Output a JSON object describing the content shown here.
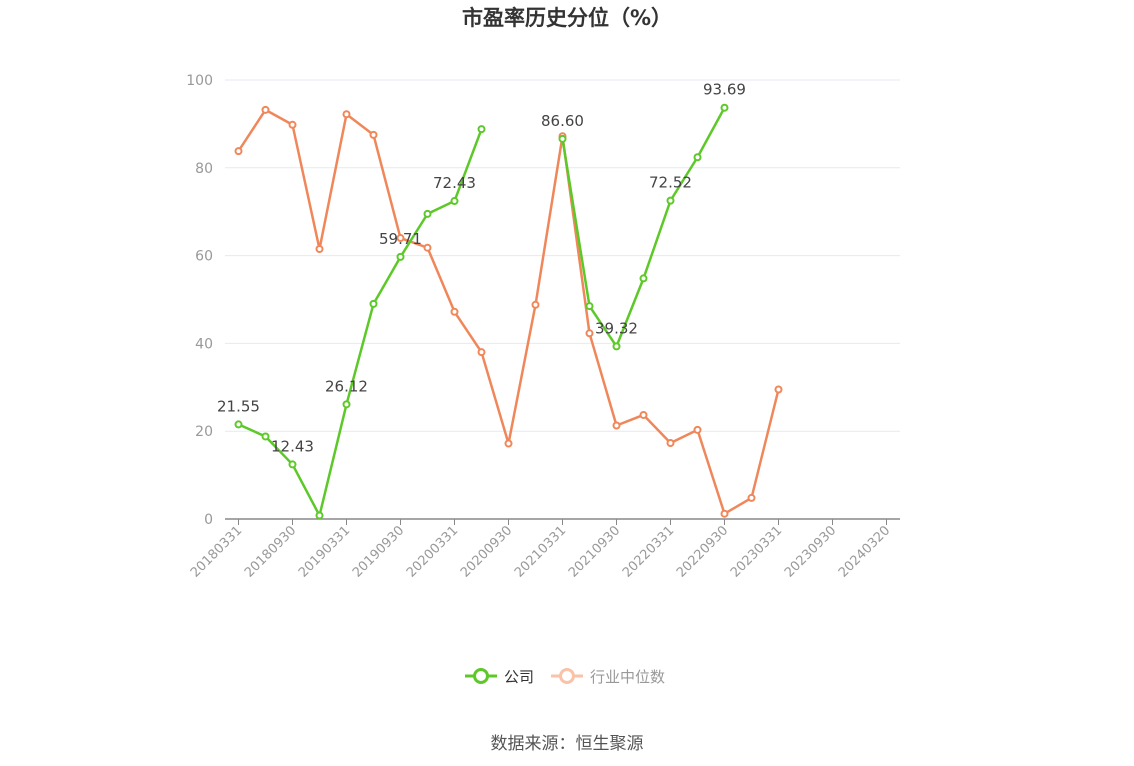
{
  "chart_data": {
    "type": "line",
    "title": "市盈率历史分位（%）",
    "xlabel": "",
    "ylabel": "",
    "ylim": [
      0,
      100
    ],
    "yticks": [
      "0",
      "20",
      "40",
      "60",
      "80",
      "100"
    ],
    "grid": true,
    "legend_position": "bottom",
    "xtick_labels": [
      "20180331",
      "20180930",
      "20190331",
      "20190930",
      "20200331",
      "20200930",
      "20210331",
      "20210930",
      "20220331",
      "20220930",
      "20230331",
      "20230930",
      "20240320"
    ],
    "series": [
      {
        "name": "公司",
        "color": "#5cc928",
        "values": [
          21.55,
          18.8,
          12.43,
          0.8,
          26.12,
          49.0,
          59.71,
          69.5,
          72.43,
          88.8,
          null,
          null,
          86.6,
          48.5,
          39.32,
          54.8,
          72.52,
          82.4,
          93.69,
          null,
          null,
          null,
          null,
          null,
          null
        ],
        "data_labels": [
          {
            "index": 0,
            "text": "21.55"
          },
          {
            "index": 2,
            "text": "12.43"
          },
          {
            "index": 4,
            "text": "26.12"
          },
          {
            "index": 6,
            "text": "59.71"
          },
          {
            "index": 8,
            "text": "72.43"
          },
          {
            "index": 12,
            "text": "86.60"
          },
          {
            "index": 14,
            "text": "39.32"
          },
          {
            "index": 16,
            "text": "72.52"
          },
          {
            "index": 18,
            "text": "93.69"
          }
        ]
      },
      {
        "name": "行业中位数",
        "color": "#f0875a",
        "values": [
          83.8,
          93.2,
          89.8,
          61.5,
          92.2,
          87.5,
          64.0,
          61.8,
          47.2,
          38.0,
          17.2,
          48.8,
          87.2,
          42.3,
          21.3,
          23.7,
          17.3,
          20.3,
          1.2,
          4.8,
          29.5,
          null,
          null,
          null,
          null
        ]
      }
    ]
  },
  "source_note": "数据来源：恒生聚源"
}
